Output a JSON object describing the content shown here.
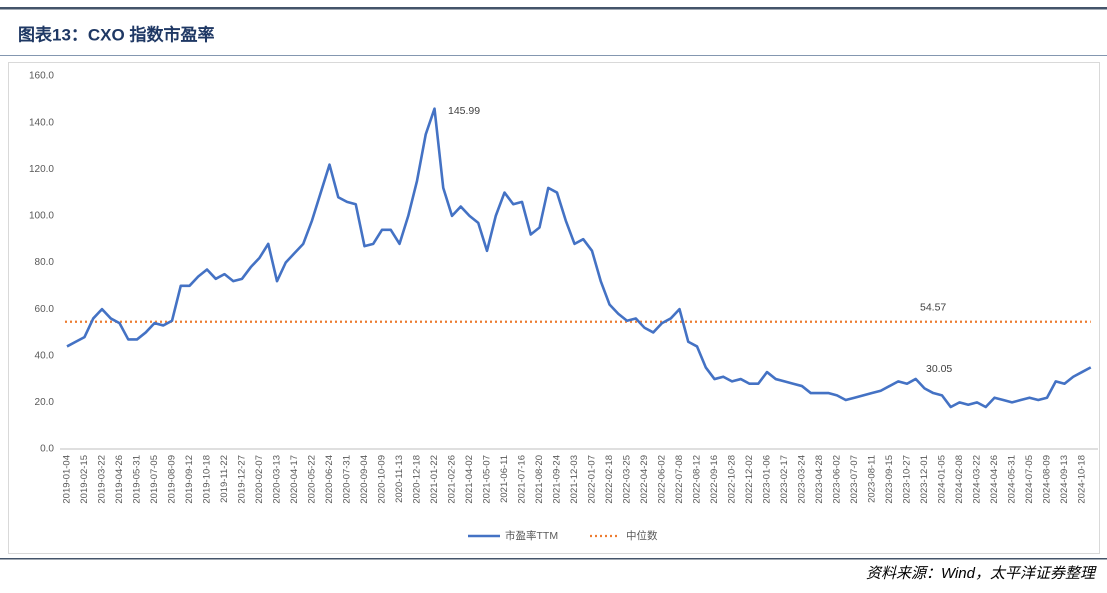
{
  "chart_data": {
    "type": "line",
    "title": "图表13：CXO 指数市盈率",
    "source": "资料来源：Wind，太平洋证券整理",
    "categories": [
      "2019-01-04",
      null,
      "2019-02-15",
      null,
      "2019-03-22",
      null,
      "2019-04-26",
      null,
      "2019-05-31",
      null,
      "2019-07-05",
      null,
      "2019-08-09",
      null,
      "2019-09-12",
      null,
      "2019-10-18",
      null,
      "2019-11-22",
      null,
      "2019-12-27",
      null,
      "2020-02-07",
      null,
      "2020-03-13",
      null,
      "2020-04-17",
      null,
      "2020-05-22",
      null,
      "2020-06-24",
      null,
      "2020-07-31",
      null,
      "2020-09-04",
      null,
      "2020-10-09",
      null,
      "2020-11-13",
      null,
      "2020-12-18",
      null,
      "2021-01-22",
      null,
      "2021-02-26",
      null,
      "2021-04-02",
      null,
      "2021-05-07",
      null,
      "2021-06-11",
      null,
      "2021-07-16",
      null,
      "2021-08-20",
      null,
      "2021-09-24",
      null,
      "2021-12-03",
      null,
      "2022-01-07",
      null,
      "2022-02-18",
      null,
      "2022-03-25",
      null,
      "2022-04-29",
      null,
      "2022-06-02",
      null,
      "2022-07-08",
      null,
      "2022-08-12",
      null,
      "2022-09-16",
      null,
      "2022-10-28",
      null,
      "2022-12-02",
      null,
      "2023-01-06",
      null,
      "2023-02-17",
      null,
      "2023-03-24",
      null,
      "2023-04-28",
      null,
      "2023-06-02",
      null,
      "2023-07-07",
      null,
      "2023-08-11",
      null,
      "2023-09-15",
      null,
      "2023-10-27",
      null,
      "2023-12-01",
      null,
      "2024-01-05",
      null,
      "2024-02-08",
      null,
      "2024-03-22",
      null,
      "2024-04-26",
      null,
      "2024-05-31",
      null,
      "2024-07-05",
      null,
      "2024-08-09",
      null,
      "2024-09-13",
      null,
      "2024-10-18",
      null
    ],
    "series": [
      {
        "name": "市盈率TTM",
        "color": "#4472c4",
        "values": [
          44,
          46,
          48,
          56,
          60,
          56,
          54,
          47,
          47,
          50,
          54,
          53,
          55,
          70,
          70,
          74,
          77,
          73,
          75,
          72,
          73,
          78,
          82,
          88,
          72,
          80,
          84,
          88,
          98,
          110,
          122,
          108,
          106,
          105,
          87,
          88,
          94,
          94,
          88,
          100,
          115,
          135,
          145.99,
          112,
          100,
          104,
          100,
          97,
          85,
          100,
          110,
          105,
          106,
          92,
          95,
          112,
          110,
          98,
          88,
          90,
          85,
          72,
          62,
          58,
          55,
          56,
          52,
          50,
          54,
          56,
          60,
          46,
          44,
          35,
          30,
          31,
          29,
          30,
          28,
          28,
          33,
          30,
          29,
          28,
          27,
          24,
          24,
          24,
          23,
          21,
          22,
          23,
          24,
          25,
          27,
          29,
          28,
          30.05,
          26,
          24,
          23,
          18,
          20,
          19,
          20,
          18,
          22,
          21,
          20,
          21,
          22,
          21,
          22,
          29,
          28,
          31,
          33,
          35
        ]
      }
    ],
    "median": {
      "name": "中位数",
      "color": "#ed7d31",
      "value": 54.57
    },
    "ylim": [
      0,
      160
    ],
    "yticks": [
      {
        "value": 0,
        "label": "0.0"
      },
      {
        "value": 20,
        "label": "20.0"
      },
      {
        "value": 40,
        "label": "40.0"
      },
      {
        "value": 60,
        "label": "60.0"
      },
      {
        "value": 80,
        "label": "80.0"
      },
      {
        "value": 100,
        "label": "100.0"
      },
      {
        "value": 120,
        "label": "120.0"
      },
      {
        "value": 140,
        "label": "140.0"
      },
      {
        "value": 160,
        "label": "160.0"
      }
    ],
    "grid": false,
    "legend": "bottom"
  }
}
